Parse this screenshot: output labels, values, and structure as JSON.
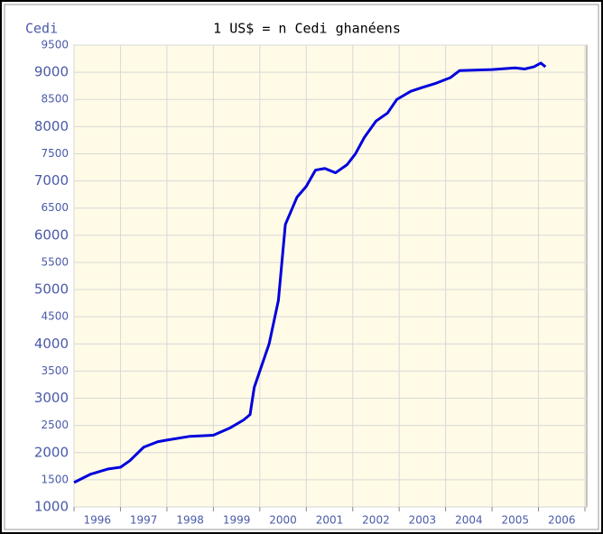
{
  "chart_data": {
    "type": "line",
    "title": "1 US$ = n Cedi ghanéens",
    "ylabel": "Cedi",
    "xlim": [
      1996,
      2007
    ],
    "ylim": [
      1000,
      9500
    ],
    "yticks": [
      1000,
      1500,
      2000,
      2500,
      3000,
      3500,
      4000,
      4500,
      5000,
      5500,
      6000,
      6500,
      7000,
      7500,
      8000,
      8500,
      9000,
      9500
    ],
    "xgrid": [
      1996,
      1997,
      1998,
      1999,
      2000,
      2001,
      2002,
      2003,
      2004,
      2005,
      2006,
      2007
    ],
    "xticks": [
      {
        "value": 1996.5,
        "label": "1996"
      },
      {
        "value": 1997.5,
        "label": "1997"
      },
      {
        "value": 1998.5,
        "label": "1998"
      },
      {
        "value": 1999.5,
        "label": "1999"
      },
      {
        "value": 2000.5,
        "label": "2000"
      },
      {
        "value": 2001.5,
        "label": "2001"
      },
      {
        "value": 2002.5,
        "label": "2002"
      },
      {
        "value": 2003.5,
        "label": "2003"
      },
      {
        "value": 2004.5,
        "label": "2004"
      },
      {
        "value": 2005.5,
        "label": "2005"
      },
      {
        "value": 2006.5,
        "label": "2006"
      }
    ],
    "grid": true,
    "background": "#fffbe6",
    "series": [
      {
        "name": "Cedi",
        "color": "#0000dd",
        "x": [
          1996.0,
          1996.35,
          1996.74,
          1997.0,
          1997.2,
          1997.5,
          1997.8,
          1998.0,
          1998.5,
          1999.0,
          1999.35,
          1999.65,
          1999.79,
          1999.88,
          2000.0,
          2000.2,
          2000.4,
          2000.55,
          2000.8,
          2001.0,
          2001.2,
          2001.4,
          2001.63,
          2001.88,
          2002.06,
          2002.25,
          2002.5,
          2002.75,
          2002.95,
          2003.25,
          2003.5,
          2003.8,
          2004.1,
          2004.3,
          2005.0,
          2005.5,
          2005.7,
          2005.9,
          2006.05,
          2006.15
        ],
        "values": [
          1450,
          1600,
          1700,
          1730,
          1850,
          2100,
          2200,
          2230,
          2300,
          2320,
          2450,
          2600,
          2700,
          3200,
          3500,
          4000,
          4800,
          6200,
          6700,
          6900,
          7200,
          7230,
          7150,
          7300,
          7500,
          7800,
          8100,
          8250,
          8500,
          8650,
          8720,
          8800,
          8900,
          9030,
          9050,
          9080,
          9060,
          9100,
          9170,
          9100
        ]
      }
    ]
  }
}
